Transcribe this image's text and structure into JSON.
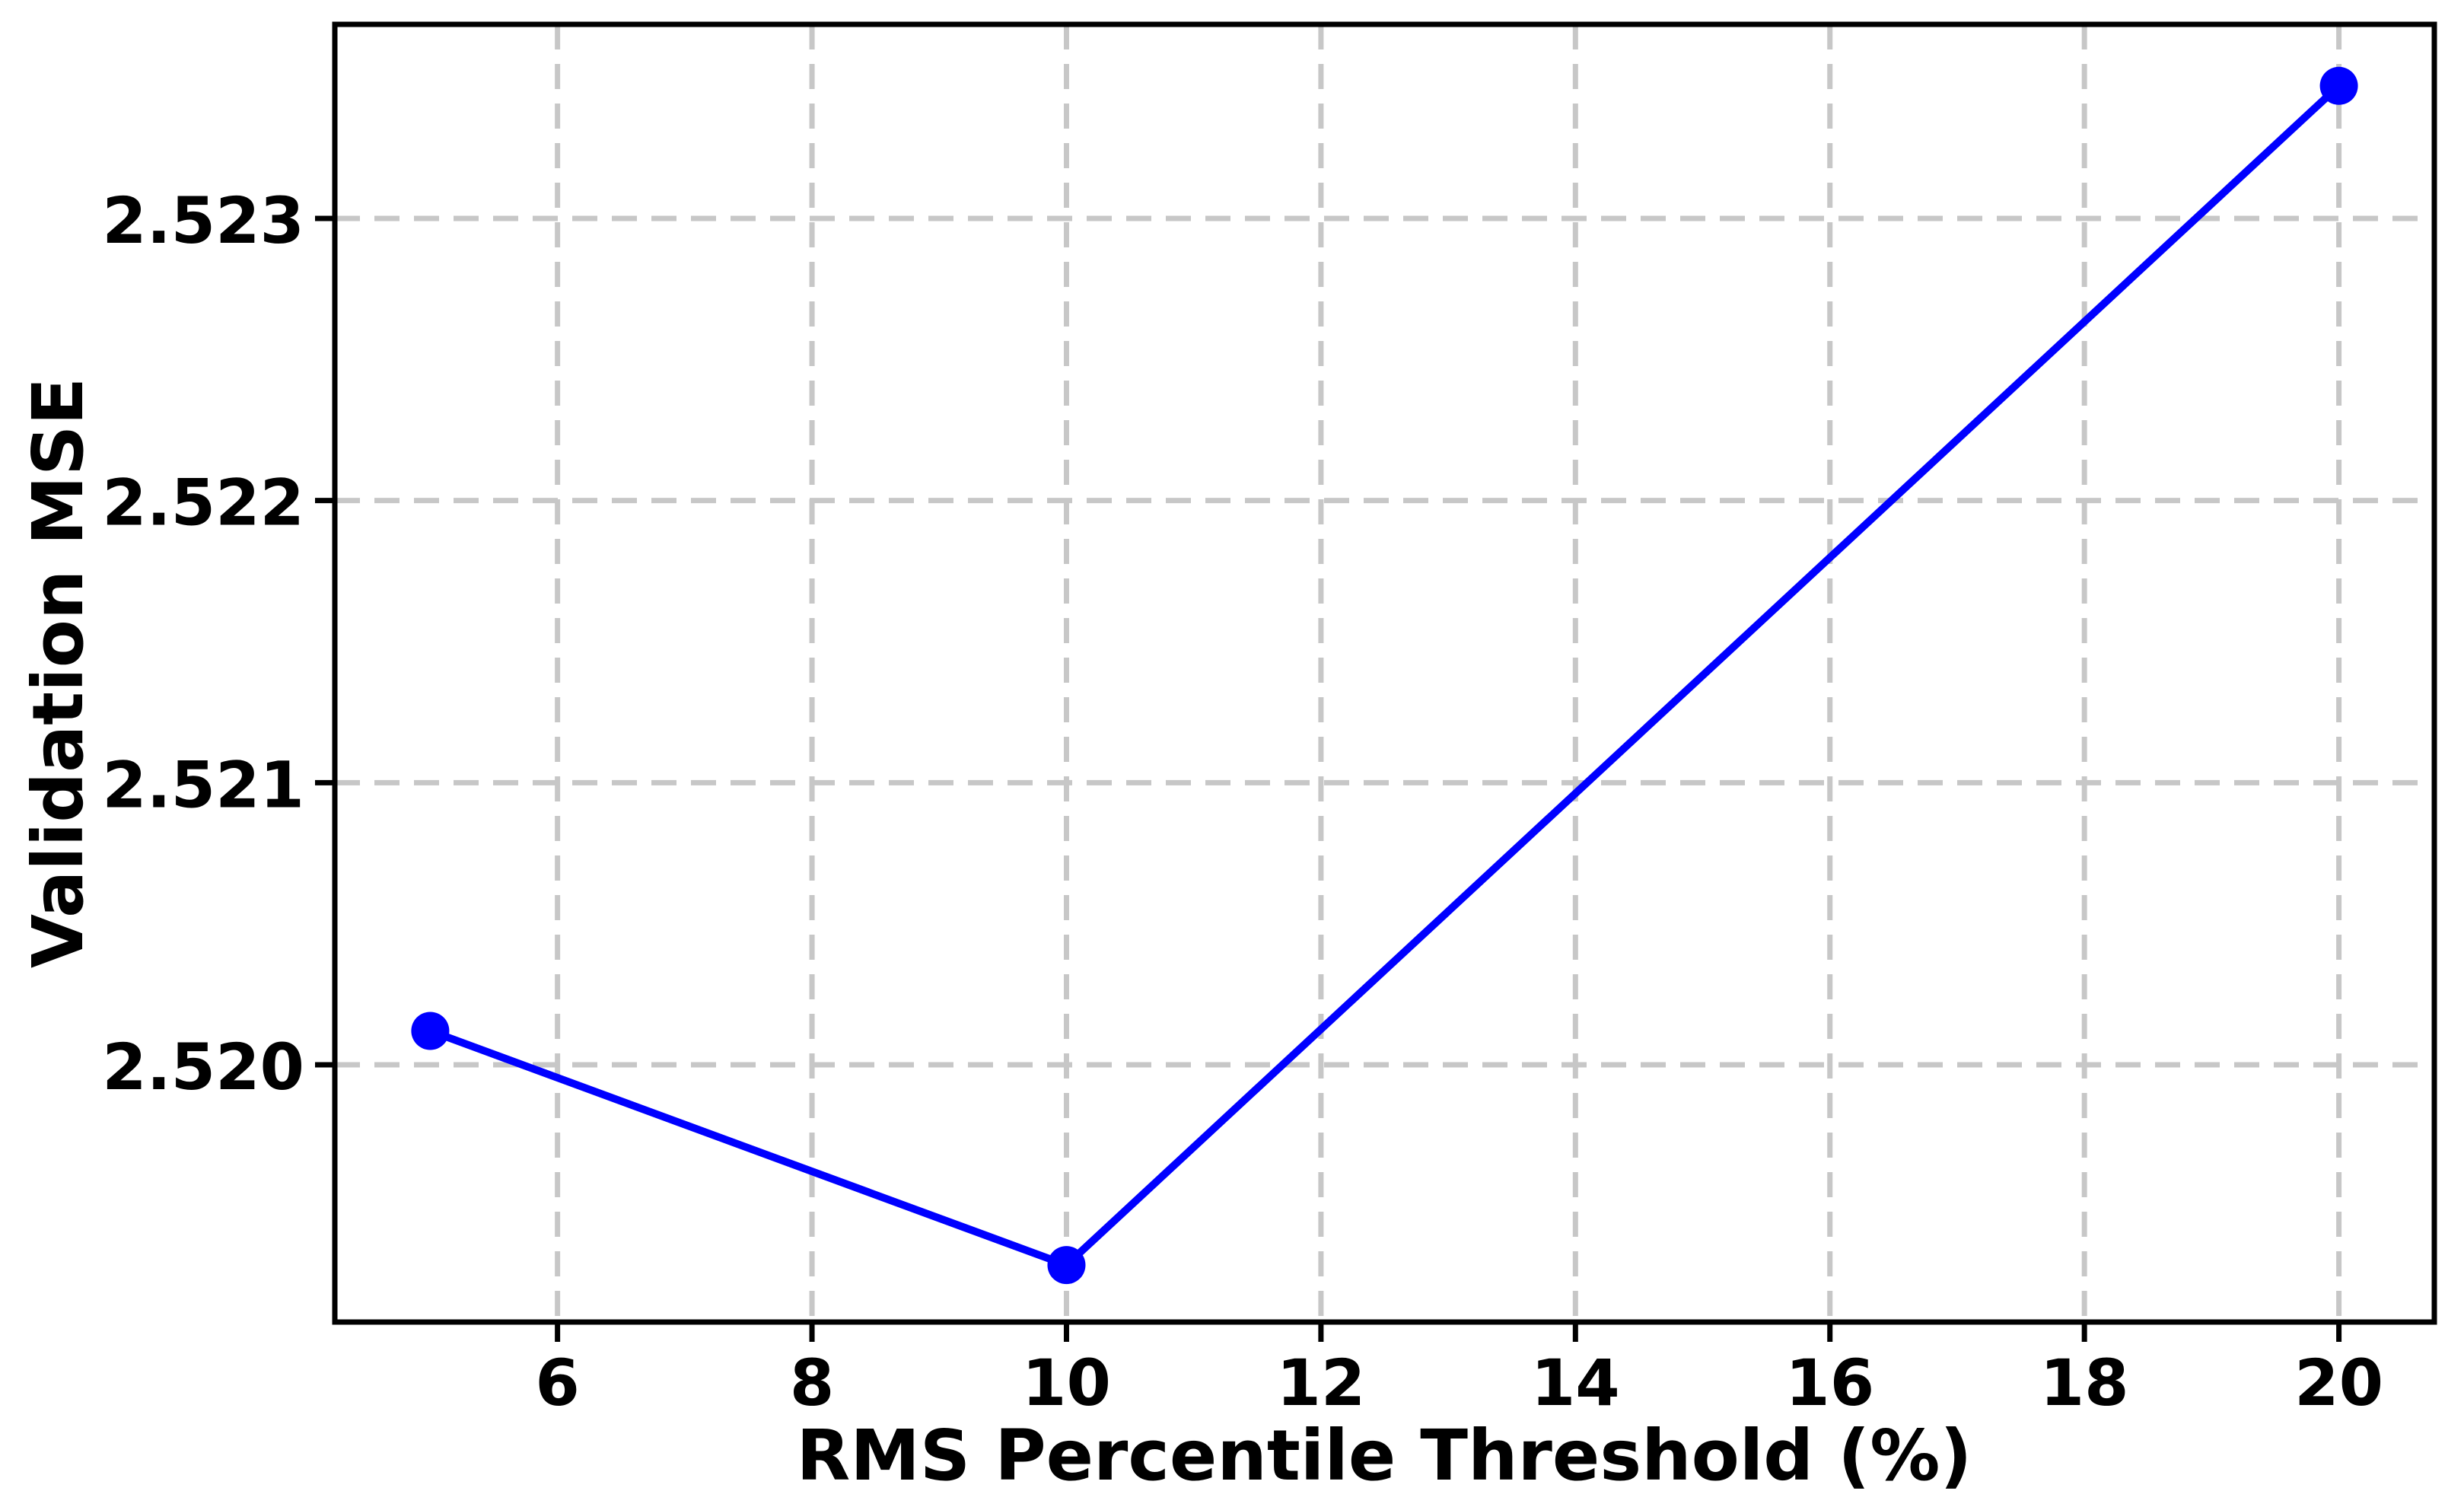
{
  "chart_data": {
    "type": "line",
    "xlabel": "RMS Percentile Threshold (%)",
    "ylabel": "Validation MSE",
    "series": [
      {
        "name": "Validation MSE",
        "x": [
          5,
          10,
          20
        ],
        "y": [
          2.52012,
          2.51929,
          2.52347
        ]
      }
    ],
    "xticks": [
      6,
      8,
      10,
      12,
      14,
      16,
      18,
      20
    ],
    "xtick_labels": [
      "6",
      "8",
      "10",
      "12",
      "14",
      "16",
      "18",
      "20"
    ],
    "yticks": [
      2.52,
      2.521,
      2.522,
      2.523
    ],
    "ytick_labels": [
      "2.520",
      "2.521",
      "2.522",
      "2.523"
    ],
    "xlim": [
      4.25,
      20.75
    ],
    "ylim": [
      2.519088,
      2.523688
    ],
    "grid": true,
    "grid_style": "dashed",
    "legend_position": "none",
    "line_color": "#0000ff",
    "marker": "circle",
    "marker_color": "#0000ff",
    "grid_color": "#c7c7c7",
    "axis_color": "#000000",
    "background_color": "#ffffff"
  }
}
